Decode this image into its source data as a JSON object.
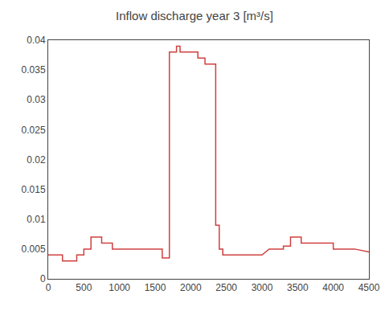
{
  "chart_data": {
    "type": "line",
    "title": "Inflow discharge year 3 [m³/s]",
    "x": [
      0,
      200,
      200,
      400,
      400,
      500,
      500,
      600,
      600,
      750,
      750,
      900,
      900,
      1000,
      1000,
      1100,
      1100,
      1600,
      1600,
      1700,
      1700,
      1800,
      1800,
      1850,
      1850,
      1900,
      1900,
      2100,
      2100,
      2200,
      2200,
      2350,
      2350,
      2400,
      2400,
      2450,
      2450,
      2550,
      2550,
      2650,
      2650,
      2750,
      2750,
      2900,
      2900,
      3000,
      3000,
      3100,
      3100,
      3300,
      3300,
      3400,
      3400,
      3550,
      3550,
      3650,
      3650,
      3800,
      3800,
      4000,
      4000,
      4100,
      4100,
      4300,
      4300,
      4500
    ],
    "values": [
      0.004,
      0.004,
      0.003,
      0.003,
      0.004,
      0.004,
      0.005,
      0.005,
      0.007,
      0.007,
      0.006,
      0.006,
      0.005,
      0.005,
      0.005,
      0.005,
      0.005,
      0.005,
      0.0035,
      0.0035,
      0.038,
      0.038,
      0.039,
      0.039,
      0.038,
      0.038,
      0.038,
      0.038,
      0.037,
      0.037,
      0.036,
      0.036,
      0.009,
      0.009,
      0.005,
      0.005,
      0.004,
      0.004,
      0.004,
      0.004,
      0.004,
      0.004,
      0.004,
      0.004,
      0.004,
      0.004,
      0.004,
      0.005,
      0.005,
      0.005,
      0.0055,
      0.0055,
      0.007,
      0.007,
      0.006,
      0.006,
      0.006,
      0.006,
      0.006,
      0.006,
      0.005,
      0.005,
      0.005,
      0.005,
      0.005,
      0.0045
    ],
    "color": "#d04040",
    "xlim": [
      0,
      4500
    ],
    "ylim": [
      0,
      0.04
    ],
    "xticks": [
      0,
      500,
      1000,
      1500,
      2000,
      2500,
      3000,
      3500,
      4000,
      4500
    ],
    "yticks": [
      0,
      0.005,
      0.01,
      0.015,
      0.02,
      0.025,
      0.03,
      0.035,
      0.04
    ],
    "grid": false
  }
}
